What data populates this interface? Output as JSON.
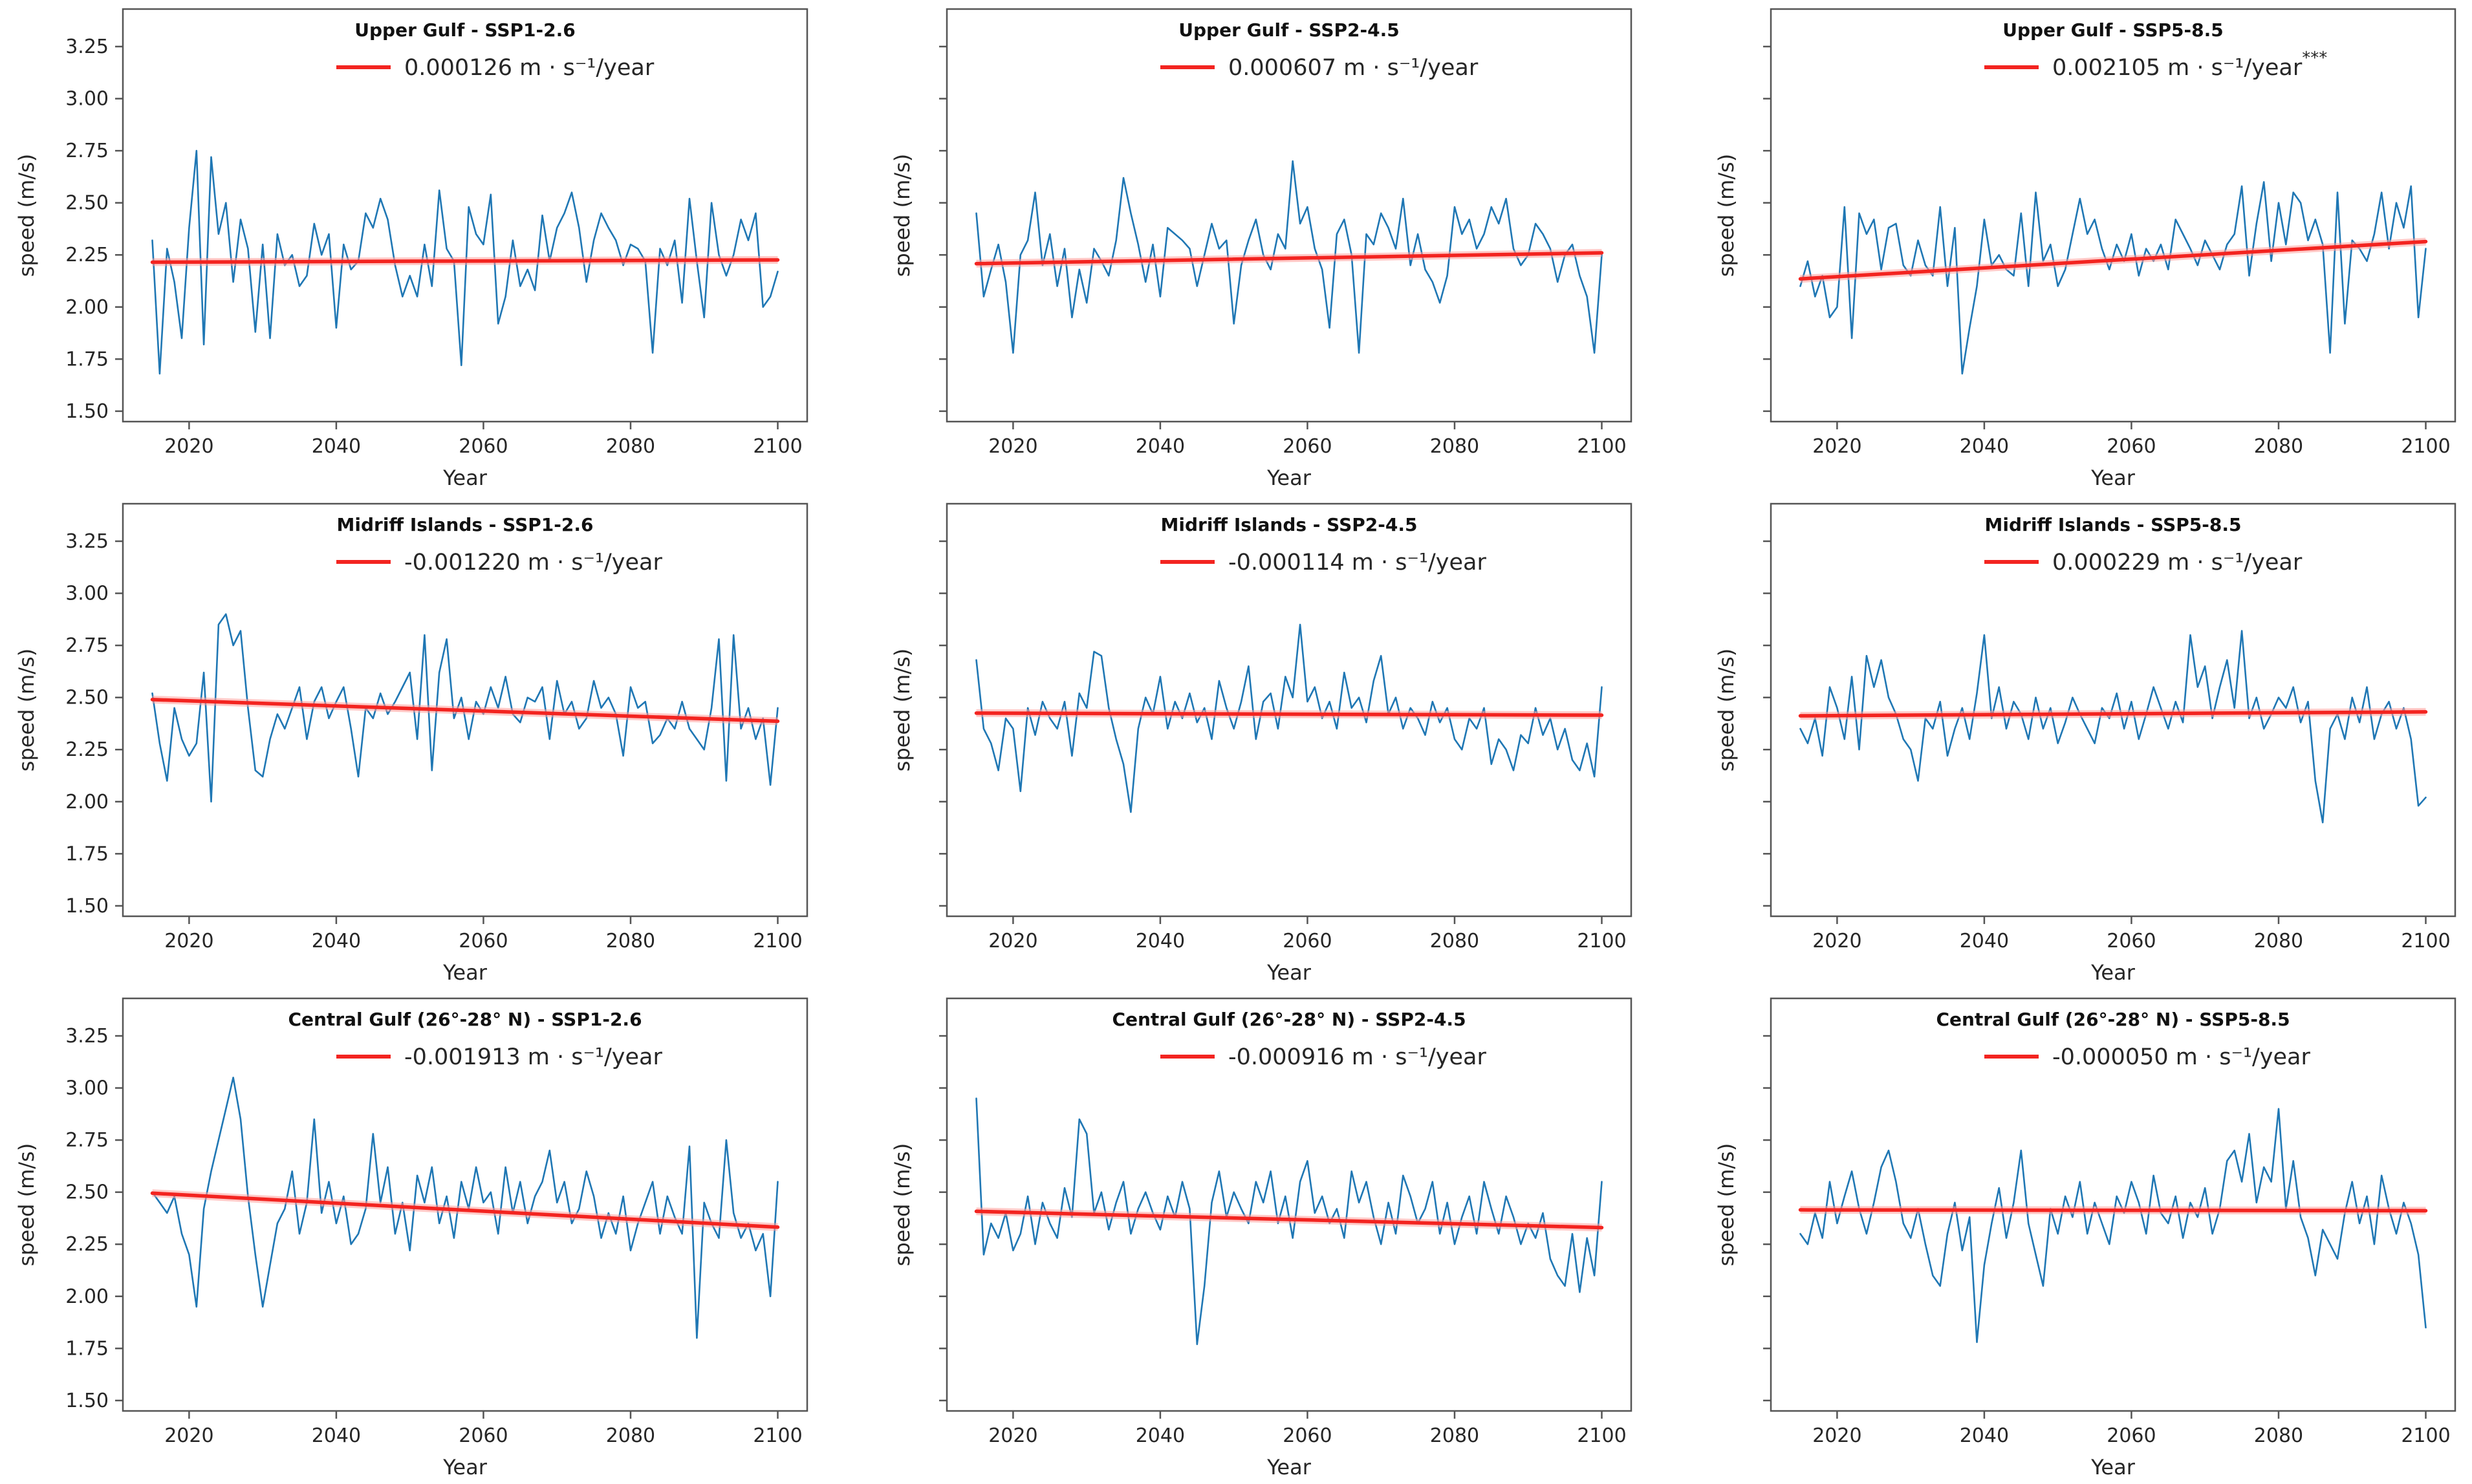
{
  "figure": {
    "xlabel": "Year",
    "ylabel": "speed (m/s)",
    "x_ticks": [
      2020,
      2040,
      2060,
      2080,
      2100
    ],
    "y_tick_labels": [
      "1.50",
      "1.75",
      "2.00",
      "2.25",
      "2.50",
      "2.75",
      "3.00",
      "3.25"
    ],
    "y_tick_values": [
      1.5,
      1.75,
      2.0,
      2.25,
      2.5,
      2.75,
      3.0,
      3.25
    ],
    "x_range": [
      2011,
      2104
    ],
    "y_range": [
      1.45,
      3.43
    ],
    "years_start": 2015,
    "years_end": 2100
  },
  "colors": {
    "series": "#1f77b4",
    "trend": "#f32420",
    "trend_halo": "#ff9f9a",
    "frame": "#555555",
    "text": "#262626"
  },
  "chart_data": [
    {
      "type": "line",
      "region": "Upper Gulf",
      "scenario": "SSP1-2.6",
      "title": "Upper Gulf - SSP1-2.6",
      "legend_value": "0.000126",
      "legend_unit": "m · s⁻¹/year",
      "significance": "",
      "trend_start": 2.215,
      "trend_end": 2.226,
      "xlabel": "Year",
      "ylabel": "speed (m/s)",
      "ylim": [
        1.45,
        3.43
      ],
      "values": [
        2.32,
        1.68,
        2.28,
        2.12,
        1.85,
        2.38,
        2.75,
        1.82,
        2.72,
        2.35,
        2.5,
        2.12,
        2.42,
        2.28,
        1.88,
        2.3,
        1.85,
        2.35,
        2.2,
        2.25,
        2.1,
        2.15,
        2.4,
        2.25,
        2.35,
        1.9,
        2.3,
        2.18,
        2.22,
        2.45,
        2.38,
        2.52,
        2.42,
        2.2,
        2.05,
        2.15,
        2.05,
        2.3,
        2.1,
        2.56,
        2.28,
        2.22,
        1.72,
        2.48,
        2.35,
        2.3,
        2.54,
        1.92,
        2.05,
        2.32,
        2.1,
        2.18,
        2.08,
        2.44,
        2.22,
        2.38,
        2.45,
        2.55,
        2.38,
        2.12,
        2.32,
        2.45,
        2.38,
        2.32,
        2.2,
        2.3,
        2.28,
        2.22,
        1.78,
        2.28,
        2.2,
        2.32,
        2.02,
        2.52,
        2.22,
        1.95,
        2.5,
        2.25,
        2.15,
        2.25,
        2.42,
        2.32,
        2.45,
        2.0,
        2.05,
        2.17
      ]
    },
    {
      "type": "line",
      "region": "Upper Gulf",
      "scenario": "SSP2-4.5",
      "title": "Upper Gulf - SSP2-4.5",
      "legend_value": "0.000607",
      "legend_unit": "m · s⁻¹/year",
      "significance": "",
      "trend_start": 2.208,
      "trend_end": 2.26,
      "xlabel": "Year",
      "ylabel": "speed (m/s)",
      "ylim": [
        1.45,
        3.43
      ],
      "values": [
        2.45,
        2.05,
        2.18,
        2.3,
        2.12,
        1.78,
        2.25,
        2.32,
        2.55,
        2.2,
        2.35,
        2.1,
        2.28,
        1.95,
        2.18,
        2.02,
        2.28,
        2.22,
        2.15,
        2.32,
        2.62,
        2.45,
        2.3,
        2.12,
        2.3,
        2.05,
        2.38,
        2.35,
        2.32,
        2.28,
        2.1,
        2.25,
        2.4,
        2.28,
        2.32,
        1.92,
        2.2,
        2.32,
        2.42,
        2.25,
        2.18,
        2.35,
        2.28,
        2.7,
        2.4,
        2.48,
        2.28,
        2.18,
        1.9,
        2.35,
        2.42,
        2.25,
        1.78,
        2.35,
        2.3,
        2.45,
        2.38,
        2.28,
        2.52,
        2.2,
        2.35,
        2.18,
        2.12,
        2.02,
        2.15,
        2.48,
        2.35,
        2.42,
        2.28,
        2.35,
        2.48,
        2.4,
        2.52,
        2.28,
        2.2,
        2.25,
        2.4,
        2.35,
        2.28,
        2.12,
        2.25,
        2.3,
        2.15,
        2.05,
        1.78,
        2.25
      ]
    },
    {
      "type": "line",
      "region": "Upper Gulf",
      "scenario": "SSP5-8.5",
      "title": "Upper Gulf - SSP5-8.5",
      "legend_value": "0.002105",
      "legend_unit": "m · s⁻¹/year",
      "significance": "***",
      "trend_start": 2.135,
      "trend_end": 2.314,
      "xlabel": "Year",
      "ylabel": "speed (m/s)",
      "ylim": [
        1.45,
        3.43
      ],
      "values": [
        2.1,
        2.22,
        2.05,
        2.15,
        1.95,
        2.0,
        2.48,
        1.85,
        2.45,
        2.35,
        2.42,
        2.18,
        2.38,
        2.4,
        2.2,
        2.15,
        2.32,
        2.2,
        2.15,
        2.48,
        2.1,
        2.38,
        1.68,
        1.9,
        2.1,
        2.42,
        2.2,
        2.25,
        2.18,
        2.15,
        2.45,
        2.1,
        2.55,
        2.22,
        2.3,
        2.1,
        2.18,
        2.35,
        2.52,
        2.35,
        2.42,
        2.28,
        2.18,
        2.3,
        2.22,
        2.35,
        2.15,
        2.28,
        2.22,
        2.3,
        2.18,
        2.42,
        2.35,
        2.28,
        2.2,
        2.32,
        2.25,
        2.18,
        2.3,
        2.35,
        2.58,
        2.15,
        2.4,
        2.6,
        2.22,
        2.5,
        2.3,
        2.55,
        2.5,
        2.32,
        2.42,
        2.3,
        1.78,
        2.55,
        1.92,
        2.32,
        2.28,
        2.22,
        2.35,
        2.55,
        2.28,
        2.5,
        2.38,
        2.58,
        1.95,
        2.28
      ]
    },
    {
      "type": "line",
      "region": "Midriff Islands",
      "scenario": "SSP1-2.6",
      "title": "Midriff Islands - SSP1-2.6",
      "legend_value": "-0.001220",
      "legend_unit": "m · s⁻¹/year",
      "significance": "",
      "trend_start": 2.49,
      "trend_end": 2.386,
      "xlabel": "Year",
      "ylabel": "speed (m/s)",
      "ylim": [
        1.45,
        3.43
      ],
      "values": [
        2.52,
        2.28,
        2.1,
        2.45,
        2.3,
        2.22,
        2.28,
        2.62,
        2.0,
        2.85,
        2.9,
        2.75,
        2.82,
        2.45,
        2.15,
        2.12,
        2.3,
        2.42,
        2.35,
        2.45,
        2.55,
        2.3,
        2.48,
        2.55,
        2.4,
        2.48,
        2.55,
        2.35,
        2.12,
        2.45,
        2.4,
        2.52,
        2.42,
        2.48,
        2.55,
        2.62,
        2.3,
        2.8,
        2.15,
        2.62,
        2.78,
        2.4,
        2.5,
        2.3,
        2.48,
        2.42,
        2.55,
        2.45,
        2.6,
        2.42,
        2.38,
        2.5,
        2.48,
        2.55,
        2.3,
        2.58,
        2.42,
        2.48,
        2.35,
        2.4,
        2.58,
        2.45,
        2.5,
        2.42,
        2.22,
        2.55,
        2.45,
        2.48,
        2.28,
        2.32,
        2.4,
        2.35,
        2.48,
        2.35,
        2.3,
        2.25,
        2.45,
        2.78,
        2.1,
        2.8,
        2.35,
        2.45,
        2.3,
        2.4,
        2.08,
        2.45
      ]
    },
    {
      "type": "line",
      "region": "Midriff Islands",
      "scenario": "SSP2-4.5",
      "title": "Midriff Islands - SSP2-4.5",
      "legend_value": "-0.000114",
      "legend_unit": "m · s⁻¹/year",
      "significance": "",
      "trend_start": 2.425,
      "trend_end": 2.415,
      "xlabel": "Year",
      "ylabel": "speed (m/s)",
      "ylim": [
        1.45,
        3.43
      ],
      "values": [
        2.68,
        2.35,
        2.28,
        2.15,
        2.4,
        2.35,
        2.05,
        2.45,
        2.32,
        2.48,
        2.4,
        2.35,
        2.48,
        2.22,
        2.52,
        2.45,
        2.72,
        2.7,
        2.45,
        2.3,
        2.18,
        1.95,
        2.35,
        2.5,
        2.42,
        2.6,
        2.35,
        2.48,
        2.4,
        2.52,
        2.38,
        2.45,
        2.3,
        2.58,
        2.45,
        2.35,
        2.48,
        2.65,
        2.3,
        2.48,
        2.52,
        2.35,
        2.6,
        2.5,
        2.85,
        2.48,
        2.55,
        2.4,
        2.48,
        2.35,
        2.62,
        2.45,
        2.5,
        2.38,
        2.58,
        2.7,
        2.42,
        2.5,
        2.35,
        2.45,
        2.4,
        2.32,
        2.48,
        2.38,
        2.45,
        2.3,
        2.25,
        2.4,
        2.35,
        2.45,
        2.18,
        2.3,
        2.25,
        2.15,
        2.32,
        2.28,
        2.45,
        2.32,
        2.4,
        2.25,
        2.35,
        2.2,
        2.15,
        2.28,
        2.12,
        2.55
      ]
    },
    {
      "type": "line",
      "region": "Midriff Islands",
      "scenario": "SSP5-8.5",
      "title": "Midriff Islands - SSP5-8.5",
      "legend_value": "0.000229",
      "legend_unit": "m · s⁻¹/year",
      "significance": "",
      "trend_start": 2.412,
      "trend_end": 2.431,
      "xlabel": "Year",
      "ylabel": "speed (m/s)",
      "ylim": [
        1.45,
        3.43
      ],
      "values": [
        2.35,
        2.28,
        2.4,
        2.22,
        2.55,
        2.45,
        2.3,
        2.6,
        2.25,
        2.7,
        2.55,
        2.68,
        2.5,
        2.42,
        2.3,
        2.25,
        2.1,
        2.4,
        2.35,
        2.48,
        2.22,
        2.35,
        2.45,
        2.3,
        2.52,
        2.8,
        2.4,
        2.55,
        2.35,
        2.48,
        2.42,
        2.3,
        2.5,
        2.35,
        2.45,
        2.28,
        2.38,
        2.5,
        2.42,
        2.35,
        2.28,
        2.45,
        2.4,
        2.52,
        2.35,
        2.48,
        2.3,
        2.42,
        2.55,
        2.45,
        2.35,
        2.48,
        2.38,
        2.8,
        2.55,
        2.65,
        2.4,
        2.55,
        2.68,
        2.45,
        2.82,
        2.4,
        2.5,
        2.35,
        2.42,
        2.5,
        2.45,
        2.55,
        2.38,
        2.48,
        2.1,
        1.9,
        2.35,
        2.42,
        2.3,
        2.5,
        2.38,
        2.55,
        2.3,
        2.42,
        2.48,
        2.35,
        2.45,
        2.3,
        1.98,
        2.02
      ]
    },
    {
      "type": "line",
      "region": "Central Gulf (26°-28° N)",
      "scenario": "SSP1-2.6",
      "title": "Central Gulf (26°-28° N) - SSP1-2.6",
      "legend_value": "-0.001913",
      "legend_unit": "m · s⁻¹/year",
      "significance": "",
      "trend_start": 2.495,
      "trend_end": 2.332,
      "xlabel": "Year",
      "ylabel": "speed (m/s)",
      "ylim": [
        1.45,
        3.43
      ],
      "values": [
        2.5,
        2.45,
        2.4,
        2.48,
        2.3,
        2.2,
        1.95,
        2.42,
        2.6,
        2.75,
        2.9,
        3.05,
        2.85,
        2.48,
        2.2,
        1.95,
        2.15,
        2.35,
        2.42,
        2.6,
        2.3,
        2.45,
        2.85,
        2.4,
        2.55,
        2.35,
        2.48,
        2.25,
        2.3,
        2.42,
        2.78,
        2.45,
        2.62,
        2.3,
        2.45,
        2.22,
        2.58,
        2.45,
        2.62,
        2.35,
        2.48,
        2.28,
        2.55,
        2.42,
        2.62,
        2.45,
        2.5,
        2.3,
        2.62,
        2.4,
        2.55,
        2.35,
        2.48,
        2.55,
        2.7,
        2.45,
        2.55,
        2.35,
        2.42,
        2.6,
        2.48,
        2.28,
        2.4,
        2.3,
        2.48,
        2.22,
        2.35,
        2.45,
        2.55,
        2.3,
        2.48,
        2.38,
        2.3,
        2.72,
        1.8,
        2.45,
        2.35,
        2.28,
        2.75,
        2.4,
        2.28,
        2.35,
        2.22,
        2.3,
        2.0,
        2.55
      ]
    },
    {
      "type": "line",
      "region": "Central Gulf (26°-28° N)",
      "scenario": "SSP2-4.5",
      "title": "Central Gulf (26°-28° N) - SSP2-4.5",
      "legend_value": "-0.000916",
      "legend_unit": "m · s⁻¹/year",
      "significance": "",
      "trend_start": 2.408,
      "trend_end": 2.33,
      "xlabel": "Year",
      "ylabel": "speed (m/s)",
      "ylim": [
        1.45,
        3.43
      ],
      "values": [
        2.95,
        2.2,
        2.35,
        2.28,
        2.4,
        2.22,
        2.3,
        2.48,
        2.25,
        2.45,
        2.35,
        2.28,
        2.52,
        2.38,
        2.85,
        2.78,
        2.4,
        2.5,
        2.32,
        2.45,
        2.55,
        2.3,
        2.42,
        2.5,
        2.4,
        2.32,
        2.48,
        2.38,
        2.55,
        2.42,
        1.77,
        2.05,
        2.45,
        2.6,
        2.38,
        2.5,
        2.42,
        2.35,
        2.55,
        2.45,
        2.6,
        2.35,
        2.48,
        2.28,
        2.55,
        2.65,
        2.4,
        2.48,
        2.35,
        2.42,
        2.28,
        2.6,
        2.45,
        2.55,
        2.38,
        2.25,
        2.45,
        2.3,
        2.58,
        2.48,
        2.35,
        2.42,
        2.55,
        2.3,
        2.45,
        2.25,
        2.38,
        2.48,
        2.3,
        2.55,
        2.42,
        2.3,
        2.48,
        2.38,
        2.25,
        2.35,
        2.28,
        2.4,
        2.18,
        2.1,
        2.05,
        2.3,
        2.02,
        2.28,
        2.1,
        2.55
      ]
    },
    {
      "type": "line",
      "region": "Central Gulf (26°-28° N)",
      "scenario": "SSP5-8.5",
      "title": "Central Gulf (26°-28° N) - SSP5-8.5",
      "legend_value": "-0.000050",
      "legend_unit": "m · s⁻¹/year",
      "significance": "",
      "trend_start": 2.415,
      "trend_end": 2.411,
      "xlabel": "Year",
      "ylabel": "speed (m/s)",
      "ylim": [
        1.45,
        3.43
      ],
      "values": [
        2.3,
        2.25,
        2.4,
        2.28,
        2.55,
        2.35,
        2.48,
        2.6,
        2.42,
        2.3,
        2.45,
        2.62,
        2.7,
        2.55,
        2.35,
        2.28,
        2.42,
        2.25,
        2.1,
        2.05,
        2.3,
        2.45,
        2.22,
        2.38,
        1.78,
        2.15,
        2.35,
        2.52,
        2.28,
        2.45,
        2.7,
        2.35,
        2.2,
        2.05,
        2.42,
        2.3,
        2.48,
        2.38,
        2.55,
        2.3,
        2.45,
        2.35,
        2.25,
        2.48,
        2.4,
        2.55,
        2.45,
        2.3,
        2.58,
        2.4,
        2.35,
        2.48,
        2.28,
        2.45,
        2.38,
        2.52,
        2.3,
        2.42,
        2.65,
        2.7,
        2.55,
        2.78,
        2.45,
        2.62,
        2.55,
        2.9,
        2.42,
        2.65,
        2.38,
        2.28,
        2.1,
        2.32,
        2.25,
        2.18,
        2.4,
        2.55,
        2.35,
        2.48,
        2.25,
        2.58,
        2.42,
        2.3,
        2.45,
        2.35,
        2.2,
        1.85
      ]
    }
  ]
}
